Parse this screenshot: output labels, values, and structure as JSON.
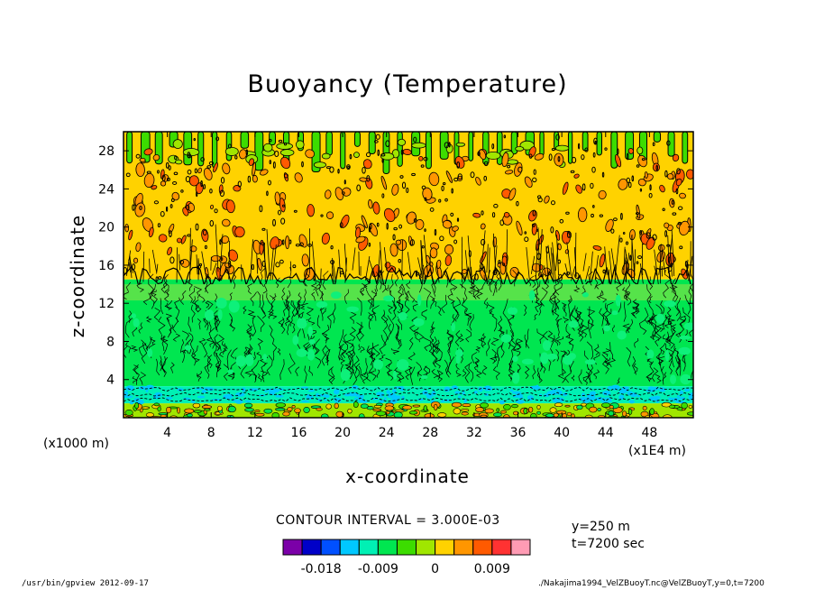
{
  "chart_data": {
    "type": "heatmap",
    "title": "Buoyancy (Temperature)",
    "xlabel": "x-coordinate",
    "ylabel": "z-coordinate",
    "x_unit_left": "(x1000 m)",
    "x_unit_right": "(x1E4 m)",
    "xlim": [
      0,
      52
    ],
    "ylim": [
      0,
      30
    ],
    "x_ticks": [
      4,
      8,
      12,
      16,
      20,
      24,
      28,
      32,
      36,
      40,
      44,
      48
    ],
    "y_ticks": [
      4,
      8,
      12,
      16,
      20,
      24,
      28
    ],
    "contour_interval": "CONTOUR INTERVAL = 3.000E-03",
    "colorbar": {
      "colors": [
        "#7b00a8",
        "#0000c8",
        "#0050ff",
        "#00c8ff",
        "#00f0b4",
        "#00e650",
        "#3cdc00",
        "#a0e600",
        "#ffd200",
        "#ff9600",
        "#ff5a00",
        "#ff3232",
        "#ff9bb4"
      ],
      "tick_labels": [
        "-0.018",
        "-0.009",
        "0",
        "0.009"
      ]
    },
    "layers": [
      {
        "z_min": 0,
        "z_max": 1.5,
        "dominant": "mixed orange/yellow/green"
      },
      {
        "z_min": 1.5,
        "z_max": 3.3,
        "dominant": "cyan/teal band"
      },
      {
        "z_min": 3.3,
        "z_max": 14.5,
        "dominant": "green"
      },
      {
        "z_min": 14.5,
        "z_max": 30,
        "dominant": "yellow with orange patches, green tops"
      }
    ]
  },
  "annotations": {
    "y_info": "y=250 m",
    "t_info": "t=7200 sec"
  },
  "footer": {
    "left": "/usr/bin/gpview  2012-09-17",
    "right": "./Nakajima1994_VelZBuoyT.nc@VelZBuoyT,y=0,t=7200"
  }
}
